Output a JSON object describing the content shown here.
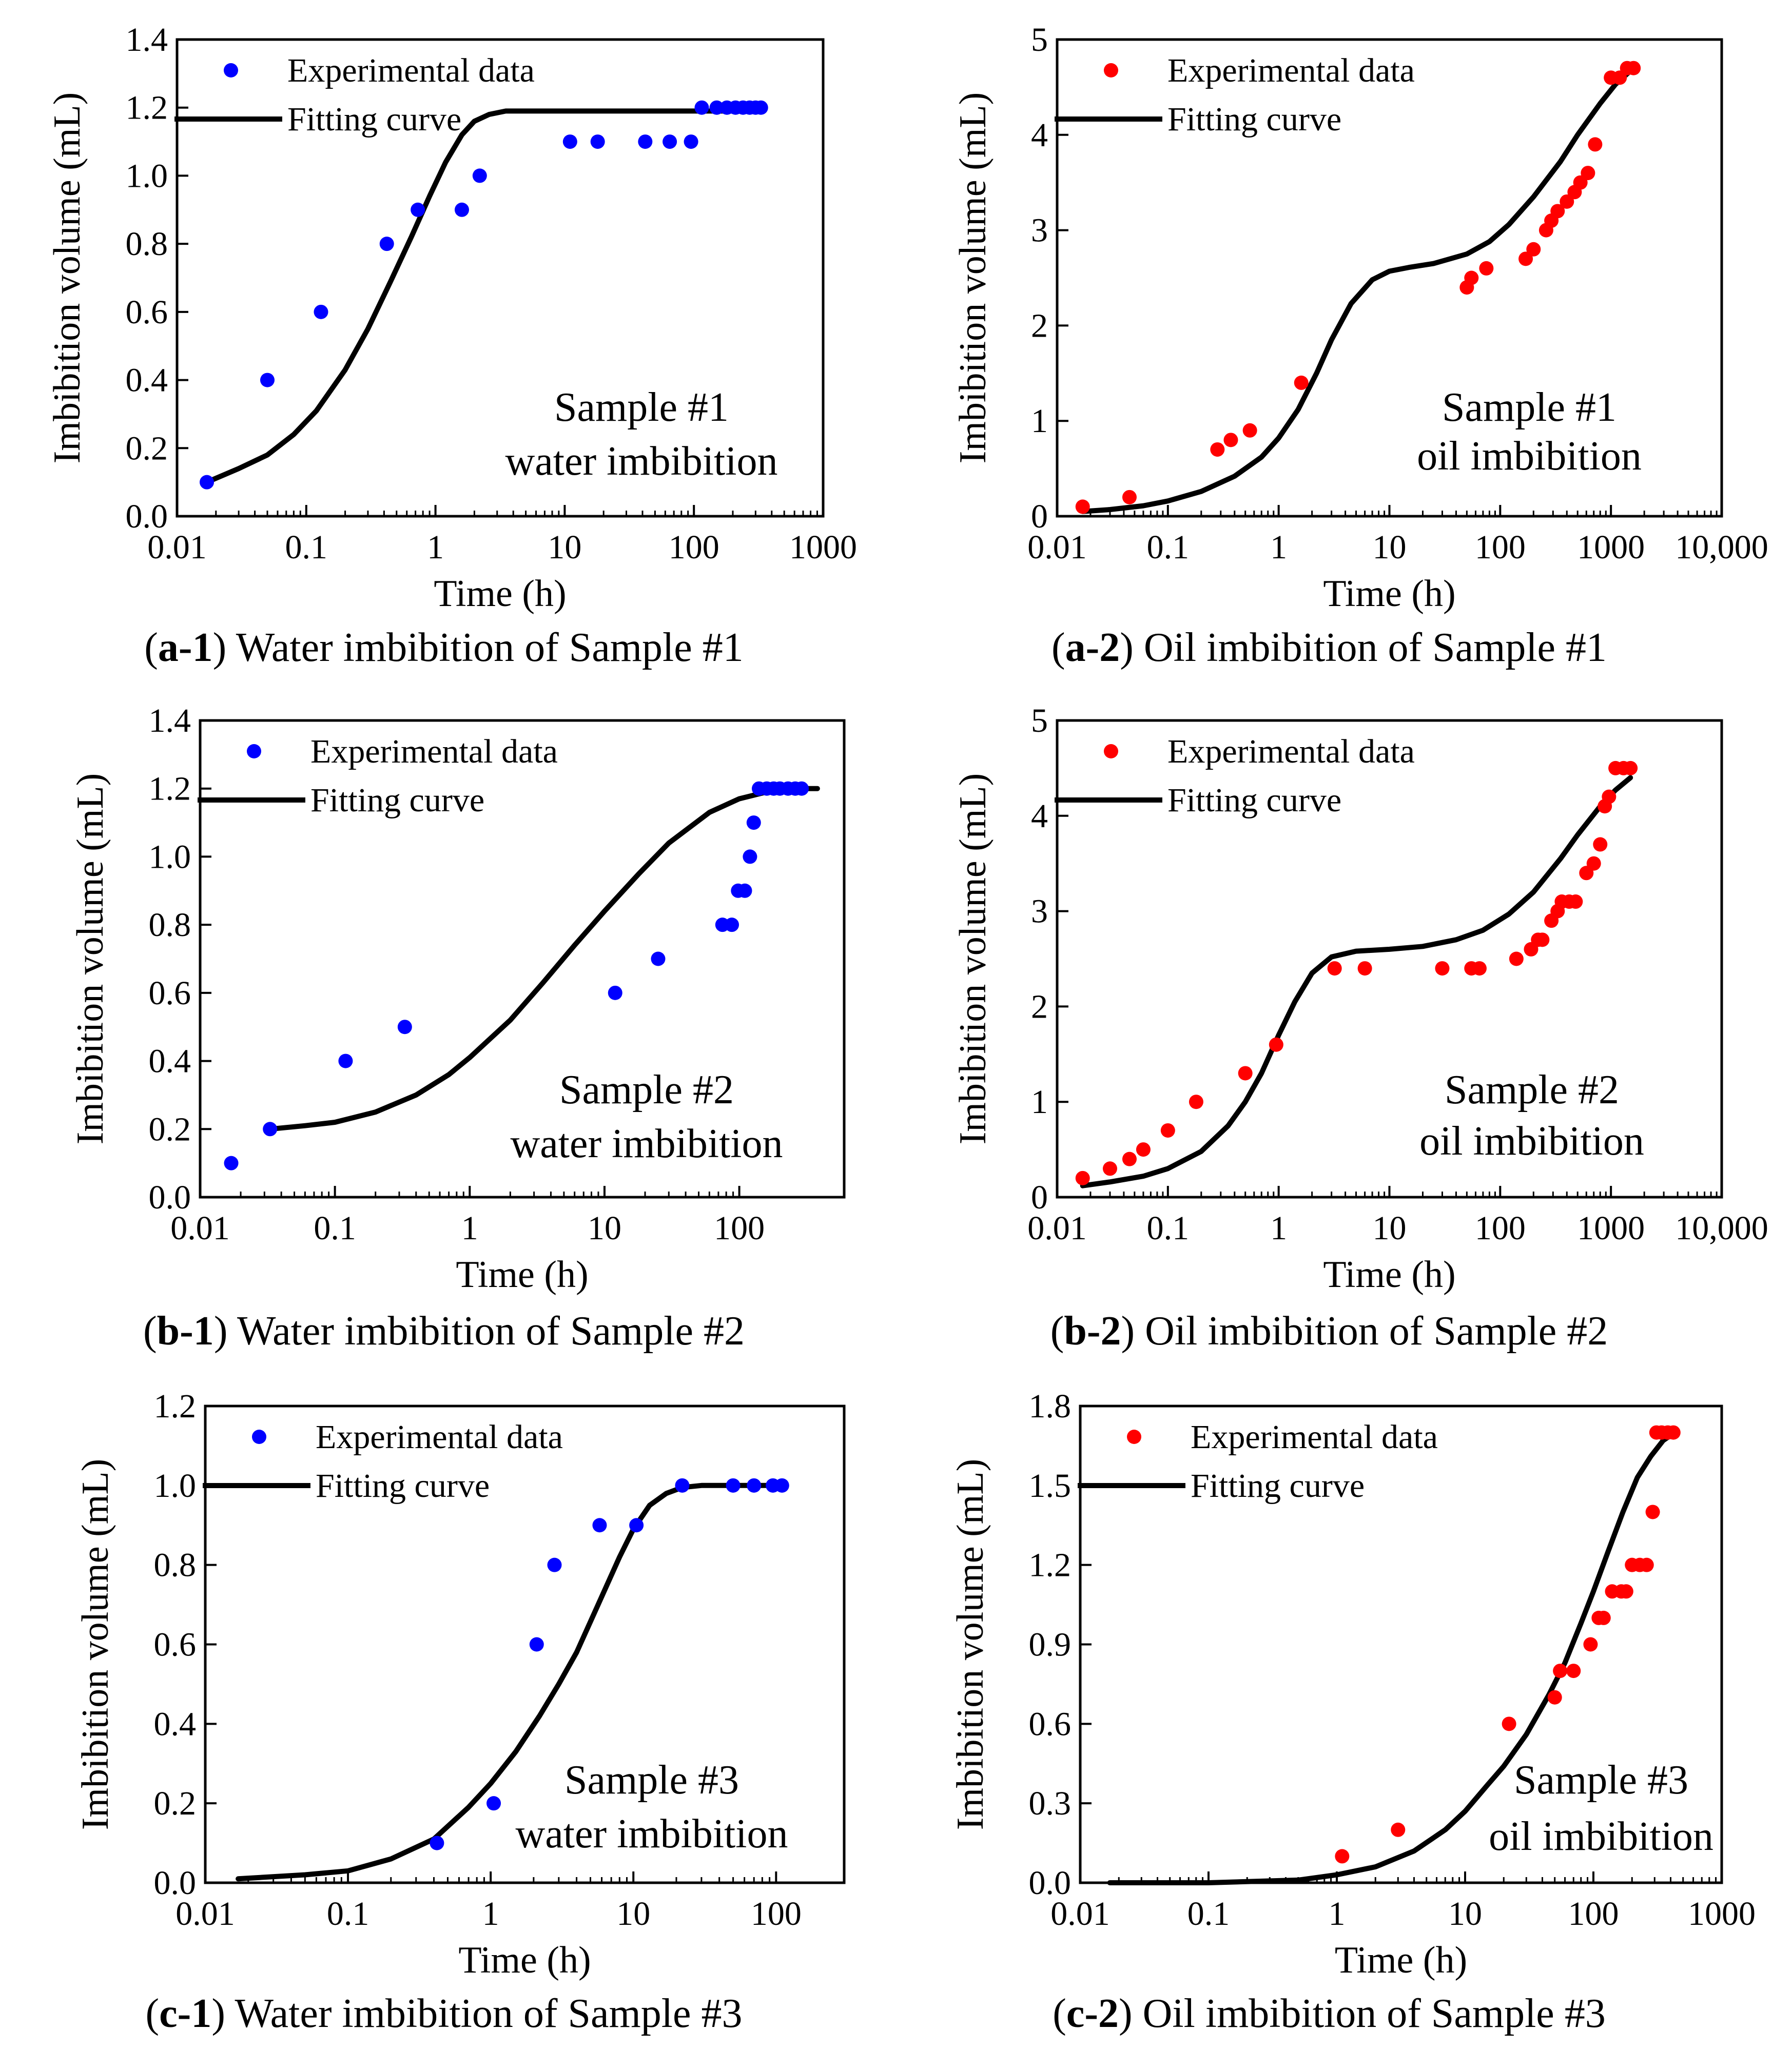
{
  "chart_data": [
    {
      "id": "a1",
      "type": "scatter",
      "caption": {
        "pre": "(",
        "bold": "a-1",
        "post": ") Water imbibition of Sample #1"
      },
      "xlabel": "Time (h)",
      "ylabel": "Imbibition volume (mL)",
      "xscale": "log",
      "xlim": [
        0.01,
        1000
      ],
      "ylim": [
        0,
        1.4
      ],
      "xticks": [
        0.01,
        0.1,
        1,
        10,
        100,
        1000
      ],
      "xtick_labels": [
        "0.01",
        "0.1",
        "1",
        "10",
        "100",
        "1000"
      ],
      "yticks": [
        0,
        0.2,
        0.4,
        0.6,
        0.8,
        1.0,
        1.2,
        1.4
      ],
      "ytick_labels": [
        "0.0",
        "0.2",
        "0.4",
        "0.6",
        "0.8",
        "1.0",
        "1.2",
        "1.4"
      ],
      "point_color": "#0000ff",
      "legend": [
        "Experimental data",
        "Fitting curve"
      ],
      "legend_position": "top-left",
      "annotation": [
        "Sample #1",
        "water imbibition"
      ],
      "points": {
        "x": [
          0.017,
          0.05,
          0.13,
          0.42,
          0.73,
          1.6,
          2.2,
          11,
          18,
          42,
          65,
          95,
          115,
          150,
          180,
          210,
          240,
          270,
          300,
          330
        ],
        "y": [
          0.1,
          0.4,
          0.6,
          0.8,
          0.9,
          0.9,
          1.0,
          1.1,
          1.1,
          1.1,
          1.1,
          1.1,
          1.2,
          1.2,
          1.2,
          1.2,
          1.2,
          1.2,
          1.2,
          1.2
        ]
      },
      "fit": {
        "x": [
          0.017,
          0.03,
          0.05,
          0.08,
          0.12,
          0.2,
          0.3,
          0.45,
          0.65,
          0.9,
          1.2,
          1.6,
          2.0,
          2.6,
          3.5,
          5,
          10,
          50,
          150,
          330
        ],
        "y": [
          0.1,
          0.14,
          0.18,
          0.24,
          0.31,
          0.43,
          0.55,
          0.69,
          0.82,
          0.94,
          1.04,
          1.12,
          1.16,
          1.18,
          1.19,
          1.19,
          1.19,
          1.19,
          1.19,
          1.19
        ]
      }
    },
    {
      "id": "a2",
      "type": "scatter",
      "caption": {
        "pre": "(",
        "bold": "a-2",
        "post": ") Oil imbibition of Sample #1"
      },
      "xlabel": "Time (h)",
      "ylabel": "Imbibition volume (mL)",
      "xscale": "log",
      "xlim": [
        0.01,
        10000
      ],
      "ylim": [
        0,
        5
      ],
      "xticks": [
        0.01,
        0.1,
        1,
        10,
        100,
        1000,
        10000
      ],
      "xtick_labels": [
        "0.01",
        "0.1",
        "1",
        "10",
        "100",
        "1000",
        "10,000"
      ],
      "yticks": [
        0,
        1,
        2,
        3,
        4,
        5
      ],
      "ytick_labels": [
        "0",
        "1",
        "2",
        "3",
        "4",
        "5"
      ],
      "point_color": "#ff0000",
      "legend": [
        "Experimental data",
        "Fitting curve"
      ],
      "legend_position": "top-left",
      "annotation": [
        "Sample #1",
        "oil imbibition"
      ],
      "points": {
        "x": [
          0.017,
          0.045,
          0.28,
          0.37,
          0.55,
          1.6,
          50,
          55,
          75,
          170,
          200,
          260,
          290,
          330,
          400,
          470,
          530,
          620,
          720,
          1000,
          1200,
          1400,
          1600
        ],
        "y": [
          0.1,
          0.2,
          0.7,
          0.8,
          0.9,
          1.4,
          2.4,
          2.5,
          2.6,
          2.7,
          2.8,
          3.0,
          3.1,
          3.2,
          3.3,
          3.4,
          3.5,
          3.6,
          3.9,
          4.6,
          4.6,
          4.7,
          4.7
        ]
      },
      "fit": {
        "x": [
          0.017,
          0.03,
          0.06,
          0.1,
          0.2,
          0.4,
          0.7,
          1.0,
          1.5,
          2.2,
          3,
          4.5,
          7,
          10,
          15,
          25,
          50,
          80,
          120,
          200,
          350,
          500,
          800,
          1100,
          1600
        ],
        "y": [
          0.05,
          0.07,
          0.11,
          0.16,
          0.26,
          0.42,
          0.62,
          0.82,
          1.12,
          1.5,
          1.85,
          2.23,
          2.48,
          2.57,
          2.61,
          2.65,
          2.75,
          2.88,
          3.06,
          3.35,
          3.72,
          4.0,
          4.33,
          4.53,
          4.7
        ]
      }
    },
    {
      "id": "b1",
      "type": "scatter",
      "caption": {
        "pre": "(",
        "bold": "b-1",
        "post": ") Water imbibition of Sample #2"
      },
      "xlabel": "Time (h)",
      "ylabel": "Imbibition volume (mL)",
      "xscale": "log",
      "xlim": [
        0.01,
        600
      ],
      "ylim": [
        0,
        1.4
      ],
      "xticks": [
        0.01,
        0.1,
        1,
        10,
        100
      ],
      "xtick_labels": [
        "0.01",
        "0.1",
        "1",
        "10",
        "100"
      ],
      "yticks": [
        0,
        0.2,
        0.4,
        0.6,
        0.8,
        1.0,
        1.2,
        1.4
      ],
      "ytick_labels": [
        "0.0",
        "0.2",
        "0.4",
        "0.6",
        "0.8",
        "1.0",
        "1.2",
        "1.4"
      ],
      "point_color": "#0000ff",
      "legend": [
        "Experimental data",
        "Fitting curve"
      ],
      "legend_position": "top-left",
      "annotation": [
        "Sample #2",
        "water imbibition"
      ],
      "points": {
        "x": [
          0.017,
          0.033,
          0.12,
          0.33,
          12,
          25,
          75,
          88,
          98,
          110,
          120,
          128,
          140,
          160,
          180,
          200,
          230,
          260,
          290
        ],
        "y": [
          0.1,
          0.2,
          0.4,
          0.5,
          0.6,
          0.7,
          0.8,
          0.8,
          0.9,
          0.9,
          1.0,
          1.1,
          1.2,
          1.2,
          1.2,
          1.2,
          1.2,
          1.2,
          1.2
        ]
      },
      "fit": {
        "x": [
          0.033,
          0.06,
          0.1,
          0.2,
          0.4,
          0.7,
          1,
          2,
          3.5,
          6,
          10,
          18,
          30,
          60,
          100,
          160,
          250,
          380
        ],
        "y": [
          0.2,
          0.21,
          0.22,
          0.25,
          0.3,
          0.36,
          0.41,
          0.52,
          0.63,
          0.74,
          0.84,
          0.95,
          1.04,
          1.13,
          1.17,
          1.19,
          1.2,
          1.2
        ]
      }
    },
    {
      "id": "b2",
      "type": "scatter",
      "caption": {
        "pre": "(",
        "bold": "b-2",
        "post": ") Oil imbibition of Sample #2"
      },
      "xlabel": "Time (h)",
      "ylabel": "Imbibition volume (mL)",
      "xscale": "log",
      "xlim": [
        0.01,
        10000
      ],
      "ylim": [
        0,
        5
      ],
      "xticks": [
        0.01,
        0.1,
        1,
        10,
        100,
        1000,
        10000
      ],
      "xtick_labels": [
        "0.01",
        "0.1",
        "1",
        "10",
        "100",
        "1000",
        "10,000"
      ],
      "yticks": [
        0,
        1,
        2,
        3,
        4,
        5
      ],
      "ytick_labels": [
        "0",
        "1",
        "2",
        "3",
        "4",
        "5"
      ],
      "point_color": "#ff0000",
      "legend": [
        "Experimental data",
        "Fitting curve"
      ],
      "legend_position": "top-left",
      "annotation": [
        "Sample #2",
        "oil imbibition"
      ],
      "points": {
        "x": [
          0.017,
          0.03,
          0.045,
          0.06,
          0.1,
          0.18,
          0.5,
          0.95,
          3.2,
          6,
          30,
          55,
          65,
          140,
          190,
          220,
          240,
          290,
          330,
          360,
          420,
          480,
          600,
          700,
          800,
          880,
          960,
          1100,
          1300,
          1500
        ],
        "y": [
          0.2,
          0.3,
          0.4,
          0.5,
          0.7,
          1.0,
          1.3,
          1.6,
          2.4,
          2.4,
          2.4,
          2.4,
          2.4,
          2.5,
          2.6,
          2.7,
          2.7,
          2.9,
          3.0,
          3.1,
          3.1,
          3.1,
          3.4,
          3.5,
          3.7,
          4.1,
          4.2,
          4.5,
          4.5,
          4.5
        ]
      },
      "fit": {
        "x": [
          0.017,
          0.03,
          0.06,
          0.1,
          0.2,
          0.35,
          0.5,
          0.7,
          1.0,
          1.4,
          2,
          3,
          5,
          10,
          20,
          40,
          70,
          120,
          200,
          350,
          500,
          800,
          1100,
          1500
        ],
        "y": [
          0.12,
          0.16,
          0.22,
          0.3,
          0.48,
          0.75,
          1.0,
          1.3,
          1.7,
          2.05,
          2.35,
          2.52,
          2.58,
          2.6,
          2.63,
          2.7,
          2.8,
          2.97,
          3.2,
          3.55,
          3.8,
          4.1,
          4.27,
          4.4
        ]
      }
    },
    {
      "id": "c1",
      "type": "scatter",
      "caption": {
        "pre": "(",
        "bold": "c-1",
        "post": ") Water imbibition of Sample #3"
      },
      "xlabel": "Time (h)",
      "ylabel": "Imbibition volume (mL)",
      "xscale": "log",
      "xlim": [
        0.01,
        300
      ],
      "ylim": [
        0,
        1.2
      ],
      "xticks": [
        0.01,
        0.1,
        1,
        10,
        100
      ],
      "xtick_labels": [
        "0.01",
        "0.1",
        "1",
        "10",
        "100"
      ],
      "yticks": [
        0,
        0.2,
        0.4,
        0.6,
        0.8,
        1.0,
        1.2
      ],
      "ytick_labels": [
        "0.0",
        "0.2",
        "0.4",
        "0.6",
        "0.8",
        "1.0",
        "1.2"
      ],
      "point_color": "#0000ff",
      "legend": [
        "Experimental data",
        "Fitting curve"
      ],
      "legend_position": "top-left",
      "annotation": [
        "Sample #3",
        "water imbibition"
      ],
      "points": {
        "x": [
          0.42,
          1.05,
          2.1,
          2.8,
          5.8,
          10.5,
          22,
          50,
          70,
          95,
          110
        ],
        "y": [
          0.1,
          0.2,
          0.6,
          0.8,
          0.9,
          0.9,
          1.0,
          1.0,
          1.0,
          1.0,
          1.0
        ]
      },
      "fit": {
        "x": [
          0.017,
          0.05,
          0.1,
          0.2,
          0.4,
          0.7,
          1,
          1.5,
          2.2,
          3,
          4,
          6,
          8,
          10,
          13,
          17,
          22,
          30,
          50,
          80,
          110
        ],
        "y": [
          0.01,
          0.02,
          0.03,
          0.06,
          0.11,
          0.19,
          0.25,
          0.33,
          0.42,
          0.5,
          0.58,
          0.72,
          0.82,
          0.89,
          0.95,
          0.98,
          0.995,
          1.0,
          1.0,
          1.0,
          1.0
        ]
      }
    },
    {
      "id": "c2",
      "type": "scatter",
      "caption": {
        "pre": "(",
        "bold": "c-2",
        "post": ") Oil imbibition of Sample #3"
      },
      "xlabel": "Time (h)",
      "ylabel": "Imbibition volume (mL)",
      "xscale": "log",
      "xlim": [
        0.01,
        1000
      ],
      "ylim": [
        0,
        1.8
      ],
      "xticks": [
        0.01,
        0.1,
        1,
        10,
        100,
        1000
      ],
      "xtick_labels": [
        "0.01",
        "0.1",
        "1",
        "10",
        "100",
        "1000"
      ],
      "yticks": [
        0,
        0.3,
        0.6,
        0.9,
        1.2,
        1.5,
        1.8
      ],
      "ytick_labels": [
        "0.0",
        "0.3",
        "0.6",
        "0.9",
        "1.2",
        "1.5",
        "1.8"
      ],
      "point_color": "#ff0000",
      "legend": [
        "Experimental data",
        "Fitting curve"
      ],
      "legend_position": "top-left",
      "annotation": [
        "Sample #3",
        "oil imbibition"
      ],
      "points": {
        "x": [
          1.1,
          3,
          22,
          50,
          55,
          70,
          95,
          110,
          120,
          140,
          165,
          180,
          200,
          230,
          260,
          290,
          310,
          340,
          380,
          420
        ],
        "y": [
          0.1,
          0.2,
          0.6,
          0.7,
          0.8,
          0.8,
          0.9,
          1.0,
          1.0,
          1.1,
          1.1,
          1.1,
          1.2,
          1.2,
          1.2,
          1.4,
          1.7,
          1.7,
          1.7,
          1.7
        ]
      },
      "fit": {
        "x": [
          0.017,
          0.1,
          0.5,
          1,
          2,
          4,
          7,
          10,
          15,
          20,
          30,
          45,
          60,
          80,
          100,
          130,
          170,
          220,
          280,
          350,
          430
        ],
        "y": [
          0.0,
          0.0,
          0.01,
          0.03,
          0.06,
          0.12,
          0.2,
          0.27,
          0.37,
          0.44,
          0.56,
          0.71,
          0.83,
          0.98,
          1.1,
          1.25,
          1.4,
          1.53,
          1.61,
          1.67,
          1.7
        ]
      }
    }
  ]
}
